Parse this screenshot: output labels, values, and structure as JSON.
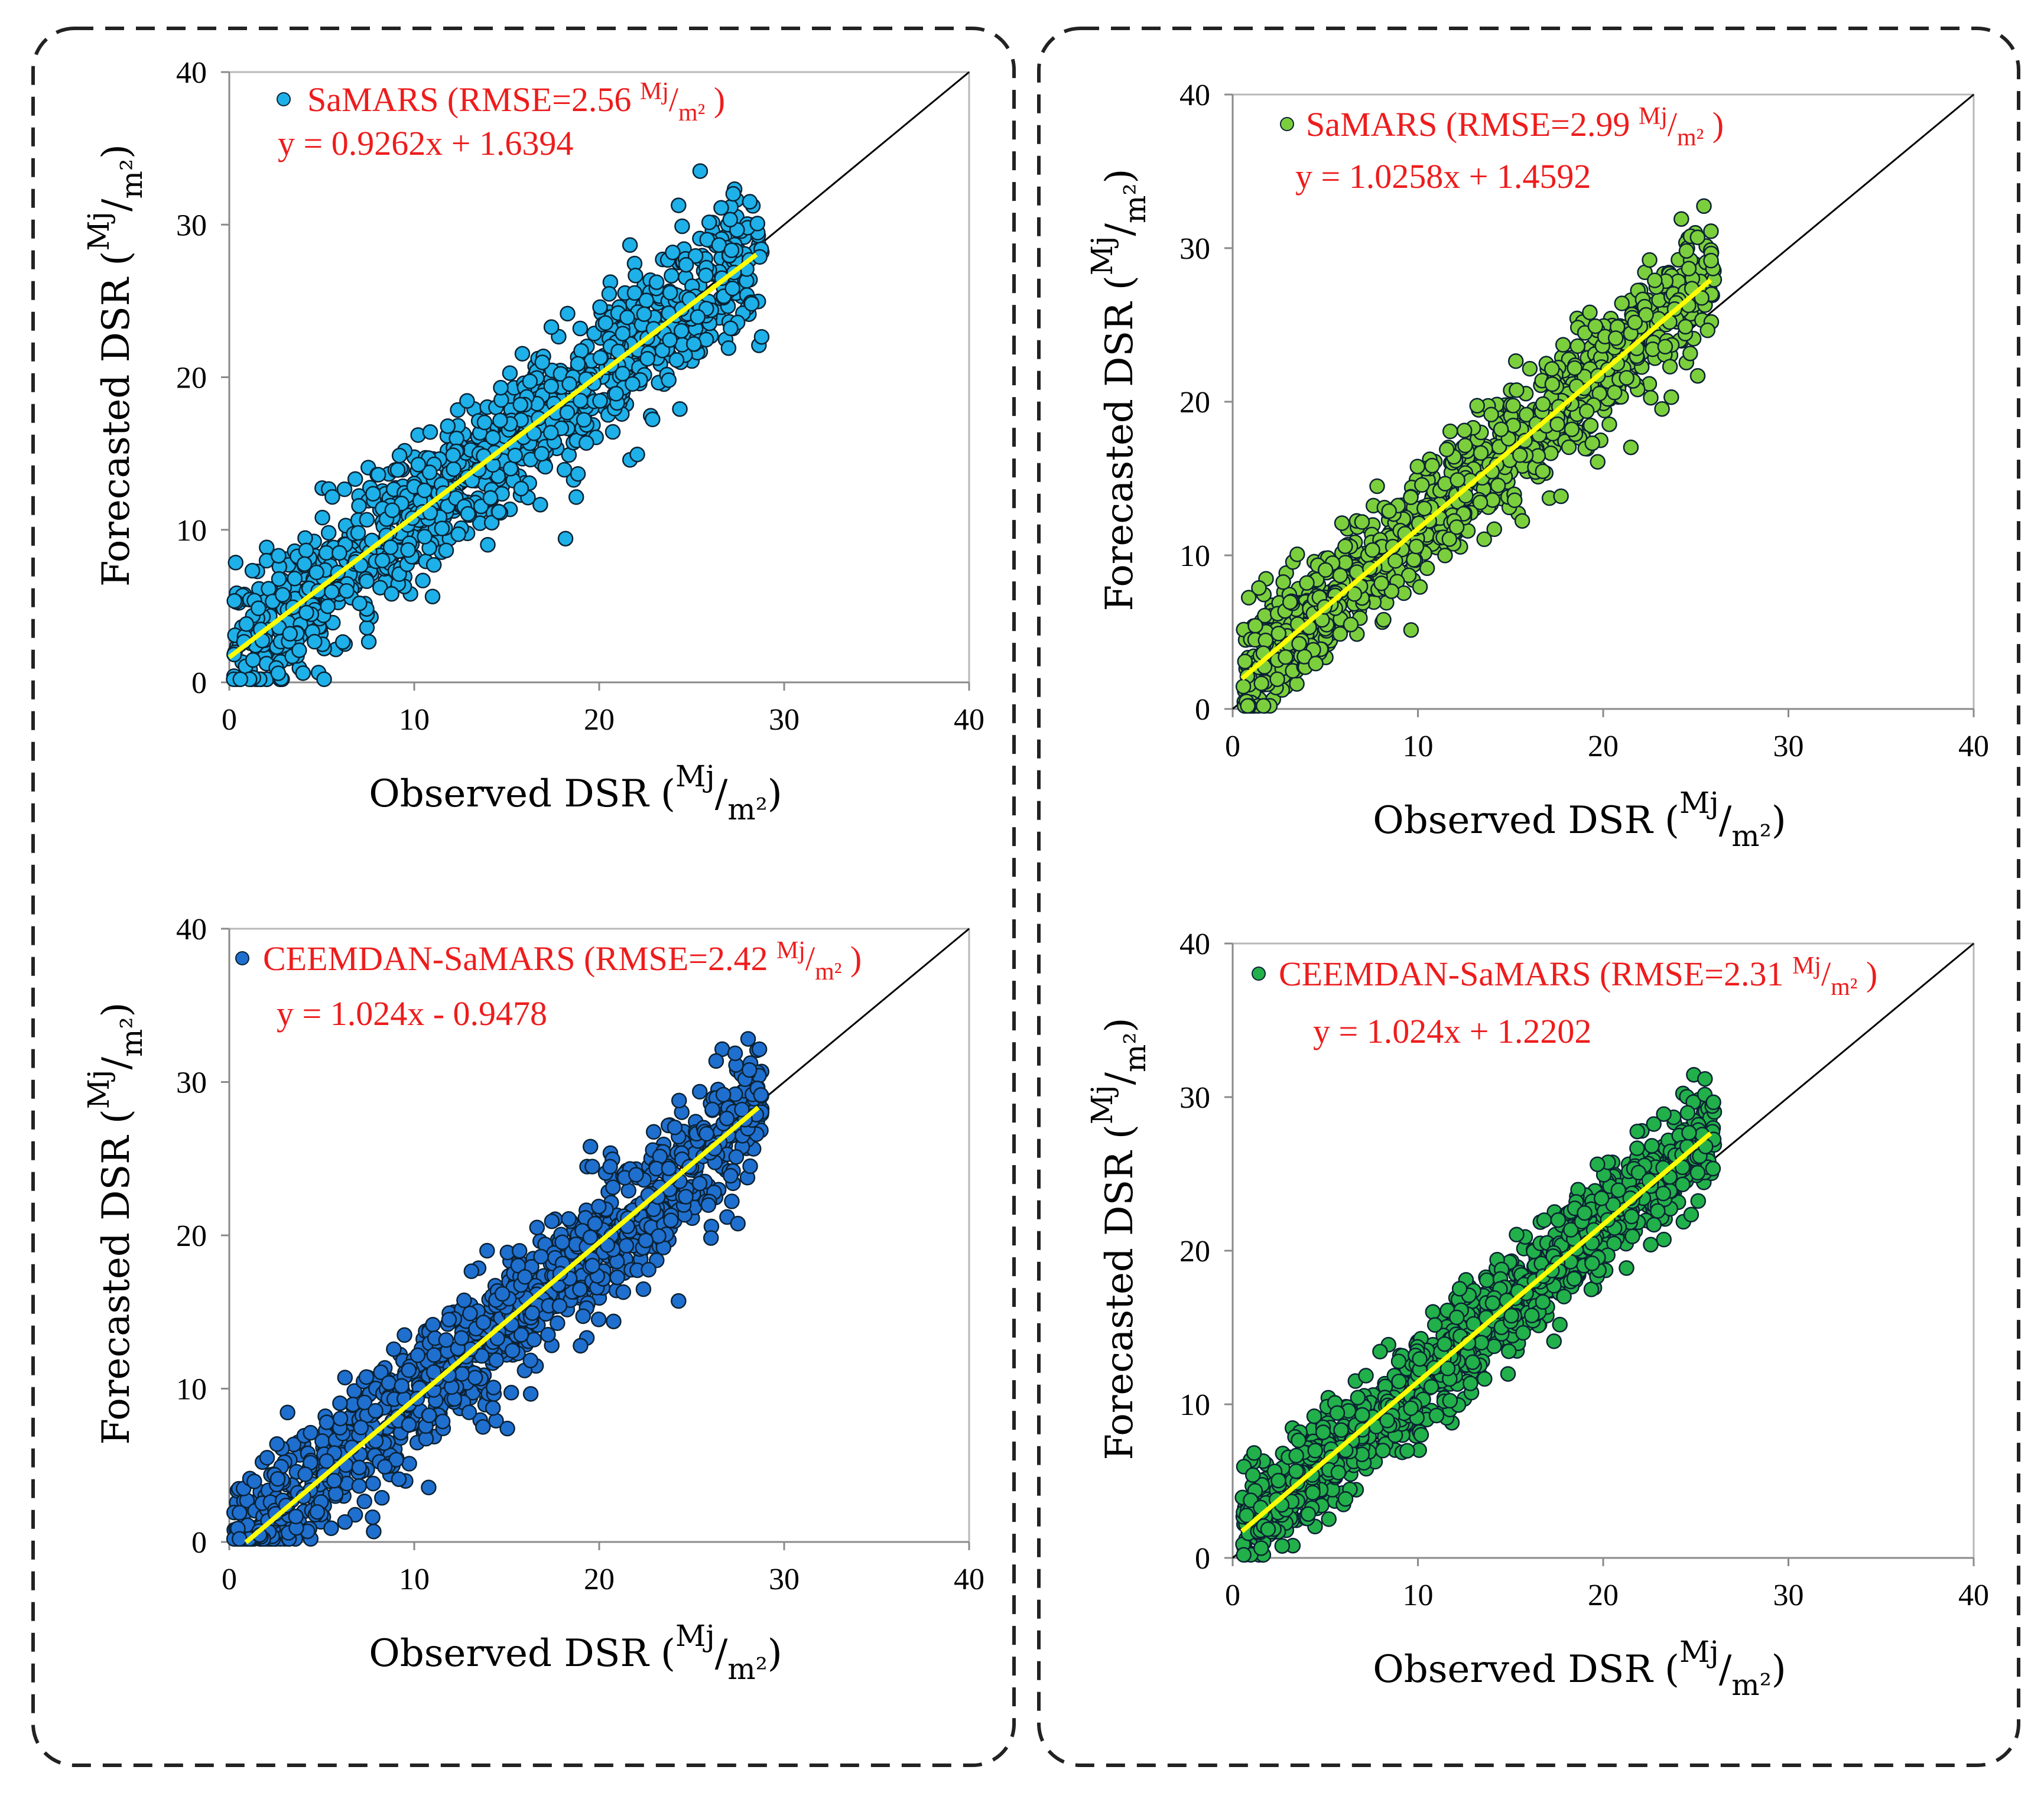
{
  "chart_data": [
    {
      "type": "scatter",
      "panel": "top-left",
      "series_name": "SaMARS",
      "legend_label": "SaMARS (RMSE=2.56",
      "rmse": 2.56,
      "equation": "y = 0.9262x + 1.6394",
      "fit": {
        "slope": 0.9262,
        "intercept": 1.6394,
        "x_range": [
          0,
          28.5
        ]
      },
      "xlabel": "Observed DSR (",
      "ylabel": "Forecasted DSR (",
      "unit_num": "Mj",
      "unit_den": "m²",
      "xlim": [
        0,
        40
      ],
      "ylim": [
        0,
        40
      ],
      "xticks": [
        "0",
        "10",
        "20",
        "30",
        "40"
      ],
      "yticks": [
        "0",
        "10",
        "20",
        "30",
        "40"
      ],
      "point_color": "#1eb0e8",
      "fit_color": "#ffff00",
      "scatter": {
        "count": 1100,
        "x_range": [
          0.2,
          28.8
        ],
        "noise_sd": 2.4,
        "seed": 11
      }
    },
    {
      "type": "scatter",
      "panel": "top-right",
      "series_name": "SaMARS",
      "legend_label": "SaMARS (RMSE=2.99",
      "rmse": 2.99,
      "equation": "y = 1.0258x + 1.4592",
      "fit": {
        "slope": 1.0258,
        "intercept": 1.4592,
        "x_range": [
          0.5,
          25.8
        ]
      },
      "xlabel": "Observed DSR (",
      "ylabel": "Forecasted DSR (",
      "unit_num": "Mj",
      "unit_den": "m²",
      "xlim": [
        0,
        40
      ],
      "ylim": [
        0,
        40
      ],
      "xticks": [
        "0",
        "10",
        "20",
        "30",
        "40"
      ],
      "yticks": [
        "0",
        "10",
        "20",
        "30",
        "40"
      ],
      "point_color": "#7ccf3c",
      "fit_color": "#ffff00",
      "scatter": {
        "count": 1100,
        "x_range": [
          0.5,
          26
        ],
        "noise_sd": 1.9,
        "seed": 23
      }
    },
    {
      "type": "scatter",
      "panel": "bottom-left",
      "series_name": "CEEMDAN-SaMARS",
      "legend_label": "CEEMDAN-SaMARS (RMSE=2.42",
      "rmse": 2.42,
      "equation": "y = 1.024x - 0.9478",
      "fit": {
        "slope": 1.024,
        "intercept": -0.9478,
        "x_range": [
          0.9,
          28.6
        ]
      },
      "xlabel": "Observed DSR (",
      "ylabel": "Forecasted DSR (",
      "unit_num": "Mj",
      "unit_den": "m²",
      "xlim": [
        0,
        40
      ],
      "ylim": [
        0,
        40
      ],
      "xticks": [
        "0",
        "10",
        "20",
        "30",
        "40"
      ],
      "yticks": [
        "0",
        "10",
        "20",
        "30",
        "40"
      ],
      "point_color": "#1f6fcf",
      "fit_color": "#ffff00",
      "scatter": {
        "count": 1100,
        "x_range": [
          0.2,
          28.8
        ],
        "noise_sd": 2.2,
        "seed": 37
      }
    },
    {
      "type": "scatter",
      "panel": "bottom-right",
      "series_name": "CEEMDAN-SaMARS",
      "legend_label": "CEEMDAN-SaMARS (RMSE=2.31",
      "rmse": 2.31,
      "equation": "y = 1.024x + 1.2202",
      "fit": {
        "slope": 1.024,
        "intercept": 1.2202,
        "x_range": [
          0.5,
          25.8
        ]
      },
      "xlabel": "Observed DSR (",
      "ylabel": "Forecasted DSR (",
      "unit_num": "Mj",
      "unit_den": "m²",
      "xlim": [
        0,
        40
      ],
      "ylim": [
        0,
        40
      ],
      "xticks": [
        "0",
        "10",
        "20",
        "30",
        "40"
      ],
      "yticks": [
        "0",
        "10",
        "20",
        "30",
        "40"
      ],
      "point_color": "#22b04a",
      "fit_color": "#ffff00",
      "scatter": {
        "count": 1200,
        "x_range": [
          0.5,
          26
        ],
        "noise_sd": 1.7,
        "seed": 53
      }
    }
  ]
}
